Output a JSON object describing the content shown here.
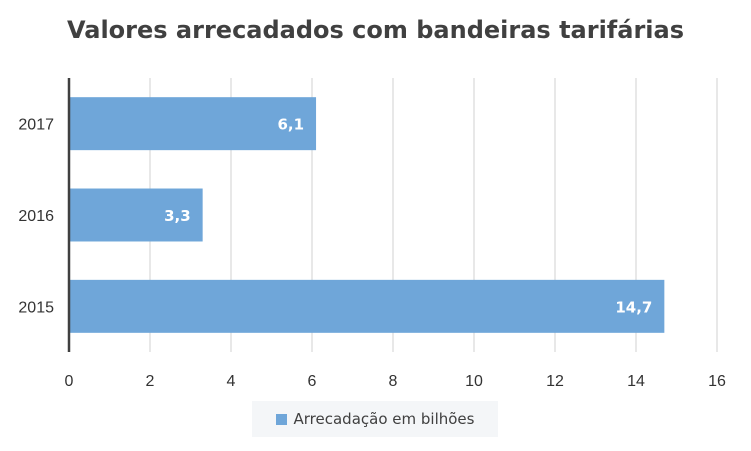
{
  "chart_data": {
    "type": "bar",
    "orientation": "horizontal",
    "title": "Valores arrecadados com bandeiras tarifárias",
    "categories": [
      "2017",
      "2016",
      "2015"
    ],
    "series": [
      {
        "name": "Arrecadação em bilhões",
        "values": [
          6.1,
          3.3,
          14.7
        ],
        "labels": [
          "6,1",
          "3,3",
          "14,7"
        ]
      }
    ],
    "xlim": [
      0,
      16
    ],
    "xticks": [
      0,
      2,
      4,
      6,
      8,
      10,
      12,
      14,
      16
    ],
    "grid": true,
    "legend_position": "bottom",
    "bar_color": "#6fa6d9"
  }
}
